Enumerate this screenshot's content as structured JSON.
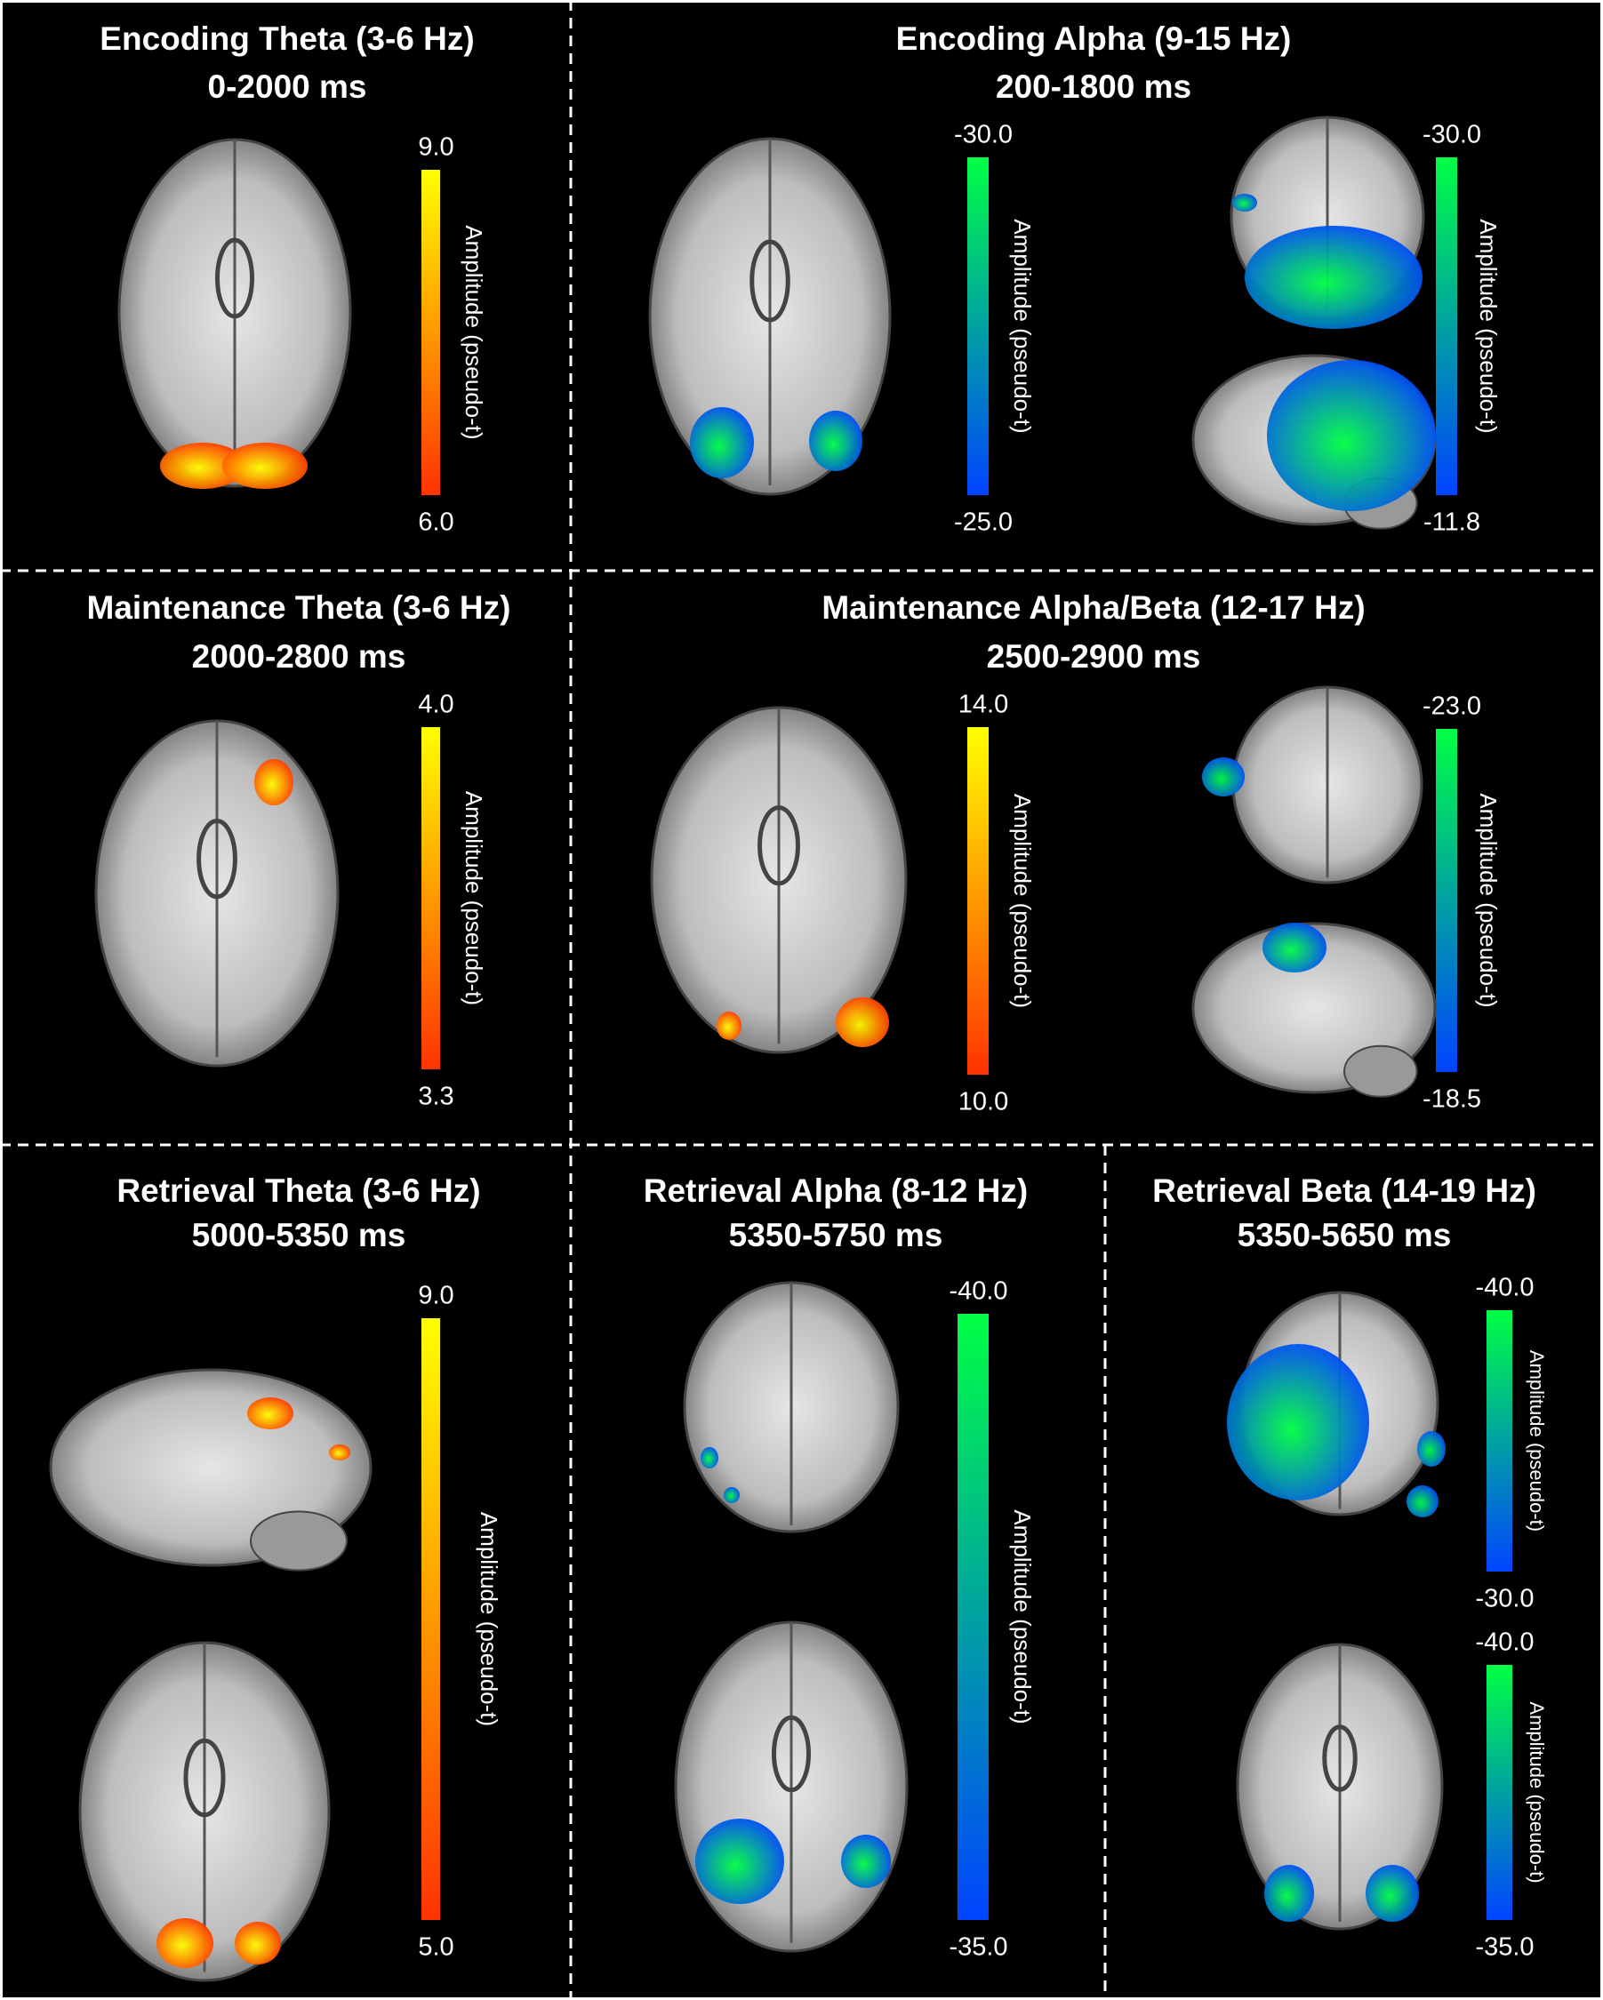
{
  "panels": [
    {
      "title": "Encoding Theta (3-6 Hz)",
      "window": "0-2000 ms",
      "colorbars": [
        {
          "top": "9.0",
          "bottom": "6.0",
          "label": "Amplitude (pseudo-t)",
          "colors": [
            "#ffff00",
            "#ff3300"
          ]
        }
      ]
    },
    {
      "title": "Encoding Alpha (9-15 Hz)",
      "window": "200-1800 ms",
      "colorbars": [
        {
          "top": "-30.0",
          "bottom": "-25.0",
          "label": "Amplitude (pseudo-t)",
          "colors": [
            "#00ff44",
            "#0044ff"
          ]
        },
        {
          "top": "-30.0",
          "bottom": "-11.8",
          "label": "Amplitude (pseudo-t)",
          "colors": [
            "#00ff44",
            "#0044ff"
          ]
        }
      ]
    },
    {
      "title": "Maintenance Theta (3-6 Hz)",
      "window": "2000-2800 ms",
      "colorbars": [
        {
          "top": "4.0",
          "bottom": "3.3",
          "label": "Amplitude (pseudo-t)",
          "colors": [
            "#ffff00",
            "#ff3300"
          ]
        }
      ]
    },
    {
      "title": "Maintenance Alpha/Beta (12-17 Hz)",
      "window": "2500-2900 ms",
      "colorbars": [
        {
          "top": "14.0",
          "bottom": "10.0",
          "label": "Amplitude (pseudo-t)",
          "colors": [
            "#ffff00",
            "#ff3300"
          ]
        },
        {
          "top": "-23.0",
          "bottom": "-18.5",
          "label": "Amplitude (pseudo-t)",
          "colors": [
            "#00ff44",
            "#0044ff"
          ]
        }
      ]
    },
    {
      "title": "Retrieval Theta (3-6 Hz)",
      "window": "5000-5350 ms",
      "colorbars": [
        {
          "top": "9.0",
          "bottom": "5.0",
          "label": "Amplitude (pseudo-t)",
          "colors": [
            "#ffff00",
            "#ff3300"
          ]
        }
      ]
    },
    {
      "title": "Retrieval Alpha (8-12 Hz)",
      "window": "5350-5750 ms",
      "colorbars": [
        {
          "top": "-40.0",
          "bottom": "-35.0",
          "label": "Amplitude (pseudo-t)",
          "colors": [
            "#00ff44",
            "#0044ff"
          ]
        }
      ]
    },
    {
      "title": "Retrieval Beta (14-19 Hz)",
      "window": "5350-5650 ms",
      "colorbars": [
        {
          "top": "-40.0",
          "bottom": "-30.0",
          "label": "Amplitude (pseudo-t)",
          "colors": [
            "#00ff44",
            "#0044ff"
          ]
        },
        {
          "top": "-40.0",
          "bottom": "-35.0",
          "label": "Amplitude (pseudo-t)",
          "colors": [
            "#00ff44",
            "#0044ff"
          ]
        }
      ]
    }
  ]
}
